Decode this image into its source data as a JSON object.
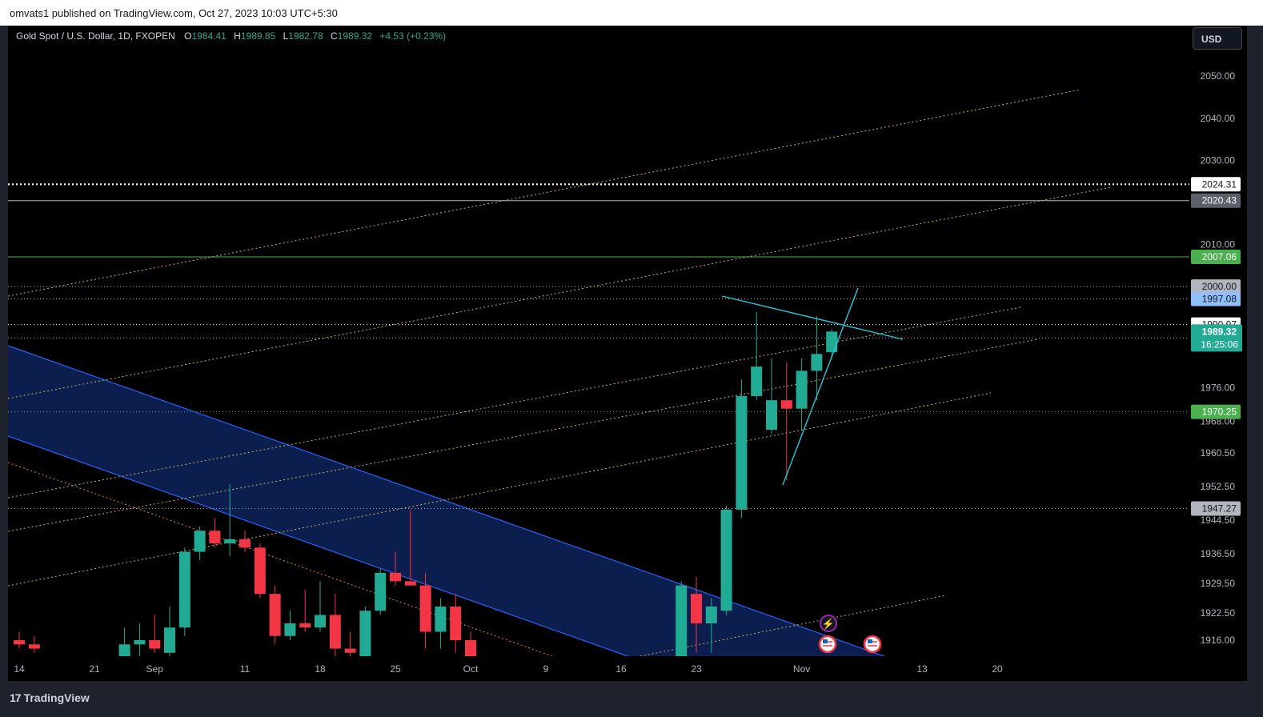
{
  "header": {
    "publisher_text": "omvats1 published on TradingView.com, Oct 27, 2023 10:03 UTC+5:30"
  },
  "legend": {
    "symbol": "Gold Spot / U.S. Dollar, 1D, FXOPEN",
    "o_label": "O",
    "o_value": "1984.41",
    "h_label": "H",
    "h_value": "1989.85",
    "l_label": "L",
    "l_value": "1982.78",
    "c_label": "C",
    "c_value": "1989.32",
    "change": "+4.53 (+0.23%)"
  },
  "currency_button": "USD",
  "footer": {
    "brand": "TradingView",
    "logo_glyph": "17"
  },
  "colors": {
    "up": "#22ab94",
    "down": "#f23645",
    "channel": "#2962ff",
    "trend": "#c9b458",
    "triangle": "#26c6da"
  },
  "chart_data": {
    "type": "candlestick",
    "y_axis_ticks": [
      "2050.00",
      "2040.00",
      "2030.00",
      "2010.00",
      "1976.00",
      "1968.00",
      "1960.50",
      "1952.50",
      "1944.50",
      "1936.50",
      "1929.50",
      "1922.50",
      "1916.00"
    ],
    "x_axis_ticks": [
      {
        "label": "14",
        "x": 0
      },
      {
        "label": "21",
        "x": 5
      },
      {
        "label": "Sep",
        "x": 9
      },
      {
        "label": "11",
        "x": 15
      },
      {
        "label": "18",
        "x": 20
      },
      {
        "label": "25",
        "x": 25
      },
      {
        "label": "Oct",
        "x": 30
      },
      {
        "label": "9",
        "x": 35
      },
      {
        "label": "16",
        "x": 40
      },
      {
        "label": "23",
        "x": 45
      },
      {
        "label": "Nov",
        "x": 52
      },
      {
        "label": "13",
        "x": 60
      },
      {
        "label": "20",
        "x": 65
      }
    ],
    "candles": [
      {
        "x": 0,
        "o": 1916,
        "h": 1918,
        "l": 1914,
        "c": 1915
      },
      {
        "x": 1,
        "o": 1915,
        "h": 1917,
        "l": 1913,
        "c": 1914
      },
      {
        "x": 7,
        "o": 1911,
        "h": 1919,
        "l": 1909,
        "c": 1915
      },
      {
        "x": 8,
        "o": 1915,
        "h": 1920,
        "l": 1912,
        "c": 1916
      },
      {
        "x": 9,
        "o": 1916,
        "h": 1922,
        "l": 1913,
        "c": 1914
      },
      {
        "x": 10,
        "o": 1913,
        "h": 1924,
        "l": 1912,
        "c": 1919
      },
      {
        "x": 11,
        "o": 1919,
        "h": 1938,
        "l": 1917,
        "c": 1937
      },
      {
        "x": 12,
        "o": 1937,
        "h": 1943,
        "l": 1935,
        "c": 1942
      },
      {
        "x": 13,
        "o": 1942,
        "h": 1945,
        "l": 1938,
        "c": 1939
      },
      {
        "x": 14,
        "o": 1939,
        "h": 1953,
        "l": 1936,
        "c": 1940
      },
      {
        "x": 15,
        "o": 1940,
        "h": 1942,
        "l": 1937,
        "c": 1938
      },
      {
        "x": 16,
        "o": 1938,
        "h": 1939,
        "l": 1926,
        "c": 1927
      },
      {
        "x": 17,
        "o": 1927,
        "h": 1929,
        "l": 1915,
        "c": 1917
      },
      {
        "x": 18,
        "o": 1917,
        "h": 1923,
        "l": 1916,
        "c": 1920
      },
      {
        "x": 19,
        "o": 1920,
        "h": 1928,
        "l": 1918,
        "c": 1919
      },
      {
        "x": 20,
        "o": 1919,
        "h": 1930,
        "l": 1918,
        "c": 1922
      },
      {
        "x": 21,
        "o": 1922,
        "h": 1927,
        "l": 1911,
        "c": 1914
      },
      {
        "x": 22,
        "o": 1914,
        "h": 1918,
        "l": 1909,
        "c": 1913
      },
      {
        "x": 23,
        "o": 1912,
        "h": 1924,
        "l": 1910,
        "c": 1923
      },
      {
        "x": 24,
        "o": 1923,
        "h": 1933,
        "l": 1922,
        "c": 1932
      },
      {
        "x": 25,
        "o": 1932,
        "h": 1937,
        "l": 1929,
        "c": 1930
      },
      {
        "x": 26,
        "o": 1930,
        "h": 1947,
        "l": 1929,
        "c": 1929
      },
      {
        "x": 27,
        "o": 1929,
        "h": 1932,
        "l": 1914,
        "c": 1918
      },
      {
        "x": 28,
        "o": 1918,
        "h": 1926,
        "l": 1914,
        "c": 1924
      },
      {
        "x": 29,
        "o": 1924,
        "h": 1927,
        "l": 1913,
        "c": 1916
      },
      {
        "x": 30,
        "o": 1916,
        "h": 1918,
        "l": 1909,
        "c": 1912
      },
      {
        "x": 44,
        "o": 1910,
        "h": 1930,
        "l": 1908,
        "c": 1929
      },
      {
        "x": 45,
        "o": 1927,
        "h": 1931,
        "l": 1913,
        "c": 1920
      },
      {
        "x": 46,
        "o": 1920,
        "h": 1926,
        "l": 1913,
        "c": 1924
      },
      {
        "x": 47,
        "o": 1923,
        "h": 1948,
        "l": 1922,
        "c": 1947
      },
      {
        "x": 48,
        "o": 1947,
        "h": 1978,
        "l": 1945,
        "c": 1974
      },
      {
        "x": 49,
        "o": 1974,
        "h": 1994,
        "l": 1973,
        "c": 1981
      },
      {
        "x": 50,
        "o": 1966,
        "h": 1983,
        "l": 1965,
        "c": 1973
      },
      {
        "x": 51,
        "o": 1973,
        "h": 1982,
        "l": 1954,
        "c": 1971
      },
      {
        "x": 52,
        "o": 1971,
        "h": 1983,
        "l": 1966,
        "c": 1980
      },
      {
        "x": 53,
        "o": 1980,
        "h": 1993,
        "l": 1973,
        "c": 1984
      },
      {
        "x": 54,
        "o": 1984.41,
        "h": 1989.85,
        "l": 1982.78,
        "c": 1989.32
      }
    ],
    "horizontal_lines": [
      {
        "price": 2024.31,
        "label": "2024.31",
        "color": "#ffffff",
        "style": "dotted-bold"
      },
      {
        "price": 2020.43,
        "label": "2020.43",
        "color": "#b2b5be",
        "style": "solid"
      },
      {
        "price": 2007.06,
        "label": "2007.06",
        "color": "#4caf50",
        "style": "solid"
      },
      {
        "price": 2000.0,
        "label": "2000.00",
        "color": "#b2b5be",
        "style": "dotted"
      },
      {
        "price": 1997.08,
        "label": "1997.08",
        "color": "#b2b5be",
        "style": "dotted"
      },
      {
        "price": 1990.97,
        "label": "1990.97",
        "color": "#ffffff",
        "style": "dotted"
      },
      {
        "price": 1987.8,
        "label": "1987.80",
        "color": "#b2b5be",
        "style": "dotted"
      },
      {
        "price": 1970.25,
        "label": "1970.25",
        "color": "#4caf50",
        "style": "dotted"
      },
      {
        "price": 1947.27,
        "label": "1947.27",
        "color": "#b2b5be",
        "style": "dotted"
      }
    ],
    "current_price": {
      "price": 1989.32,
      "label": "1989.32",
      "countdown": "16:25:06"
    }
  }
}
